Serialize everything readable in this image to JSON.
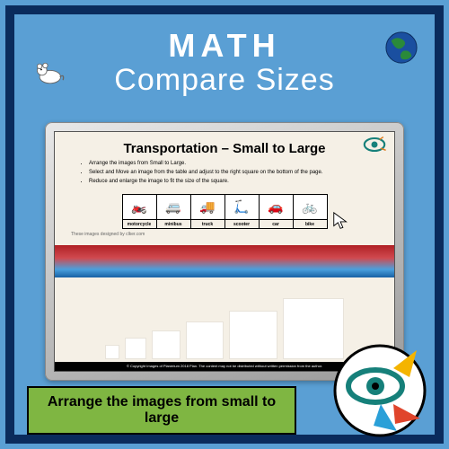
{
  "header": {
    "line1": "MATH",
    "line2": "Compare Sizes"
  },
  "colors": {
    "page_bg": "#5a9fd4",
    "frame": "#0a2b5c",
    "title_text": "#ffffff",
    "screen_bg": "#f5f0e6",
    "green_banner": "#7fb642",
    "gradient_top": "#b02024",
    "gradient_bottom": "#1760a4"
  },
  "slide": {
    "title": "Transportation – Small to Large",
    "instructions": [
      "Arrange the images from Small to Large.",
      "Select and Move an image from the table and adjust to the right square on the bottom of the page.",
      "Reduce and enlarge the image to fit the size of the square."
    ],
    "items": [
      {
        "label": "motorcycle",
        "glyph": "🏍️"
      },
      {
        "label": "minibus",
        "glyph": "🚐"
      },
      {
        "label": "truck",
        "glyph": "🚚"
      },
      {
        "label": "scooter",
        "glyph": "🛴"
      },
      {
        "label": "car",
        "glyph": "🚗"
      },
      {
        "label": "bike",
        "glyph": "🚲"
      }
    ],
    "credit": "These images designed by clker.com",
    "copyright": "© Copyright Images of Planerium 2018 Plan. The content may not be distributed without written permission from the author."
  },
  "squares": [
    {
      "size": 14
    },
    {
      "size": 22
    },
    {
      "size": 30
    },
    {
      "size": 40
    },
    {
      "size": 52
    },
    {
      "size": 66
    }
  ],
  "footer": {
    "text": "Arrange the images from small to large"
  }
}
